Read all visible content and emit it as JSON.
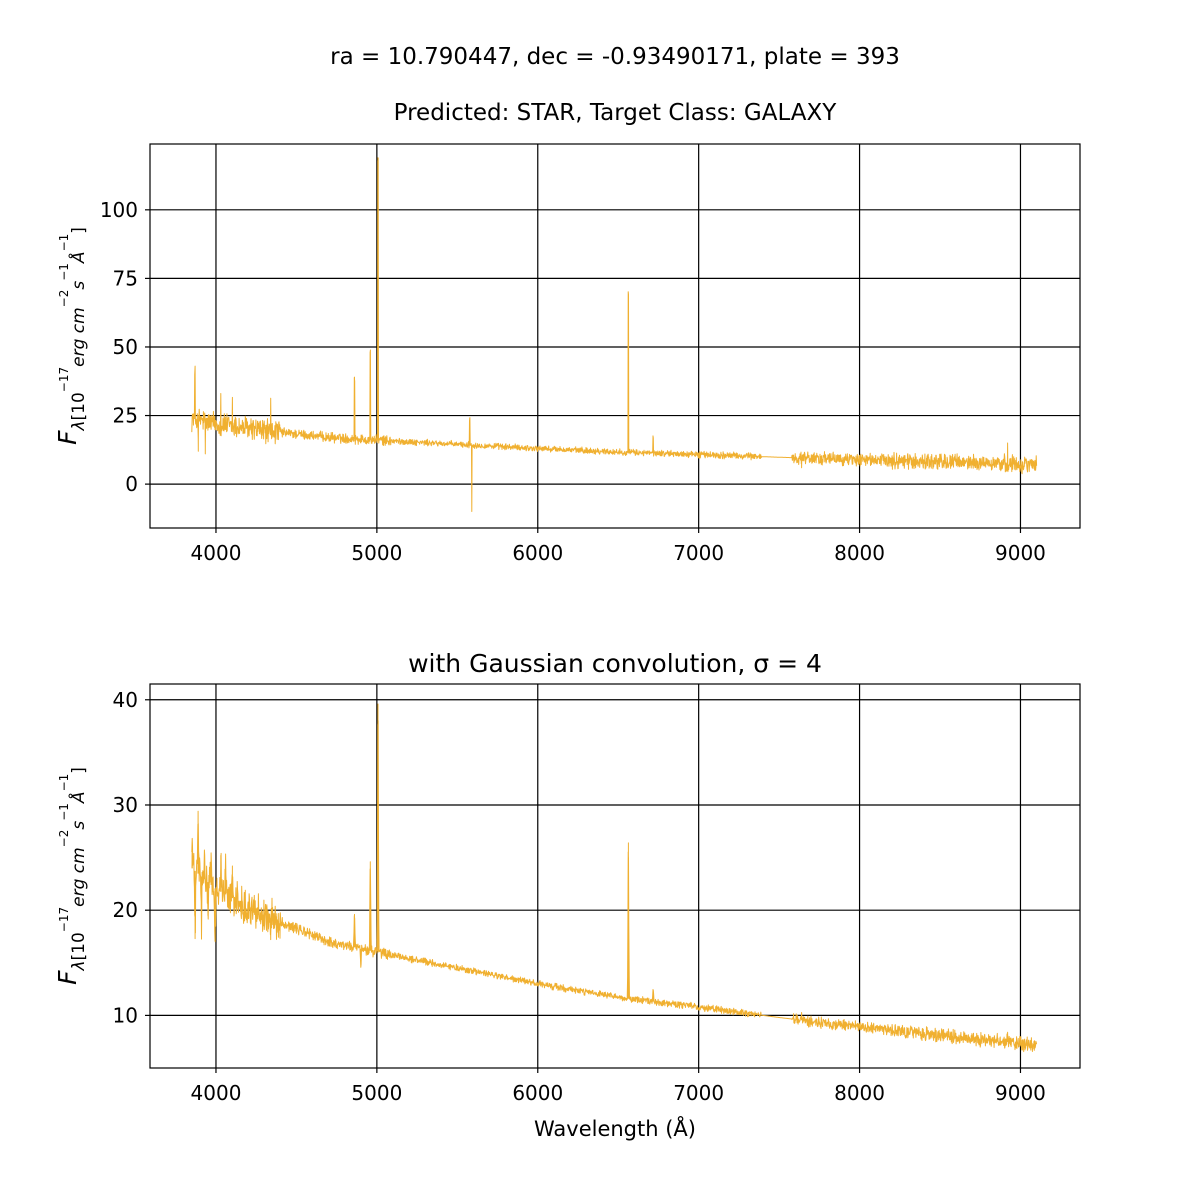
{
  "figure": {
    "title_line1": "ra = 10.790447, dec = -0.93490171, plate = 393",
    "title_line2": "Predicted: STAR, Target Class: GALAXY",
    "line_color": "#f0b030",
    "grid_color": "#000000",
    "background": "#ffffff"
  },
  "chart_data": [
    {
      "type": "line",
      "title": "",
      "xlabel": "",
      "ylabel": "F_λ[10^{-17} erg cm^{-2} s^{-1} Å^{-1}]",
      "xlim": [
        3590,
        9370
      ],
      "ylim": [
        -16,
        124
      ],
      "xticks": [
        4000,
        5000,
        6000,
        7000,
        8000,
        9000
      ],
      "yticks": [
        0,
        25,
        50,
        75,
        100
      ],
      "grid": true,
      "wavelength_range": [
        3850,
        9100
      ],
      "gap": [
        7390,
        7580
      ],
      "continuum": [
        [
          3850,
          24
        ],
        [
          4000,
          22
        ],
        [
          4300,
          19.5
        ],
        [
          4700,
          17
        ],
        [
          5000,
          16
        ],
        [
          5500,
          14.5
        ],
        [
          6000,
          13
        ],
        [
          6500,
          11.7
        ],
        [
          7000,
          10.8
        ],
        [
          7500,
          9.8
        ],
        [
          8000,
          8.9
        ],
        [
          8500,
          8.1
        ],
        [
          9100,
          7.2
        ]
      ],
      "noise_regions": [
        [
          3850,
          4400,
          3.5
        ],
        [
          4400,
          5100,
          1.4
        ],
        [
          5100,
          7000,
          0.9
        ],
        [
          7000,
          7580,
          1.0
        ],
        [
          7580,
          8200,
          1.8
        ],
        [
          8200,
          9100,
          2.4
        ]
      ],
      "features": [
        {
          "x": 3869,
          "y": 39
        },
        {
          "x": 3890,
          "y": 12
        },
        {
          "x": 3934,
          "y": 11
        },
        {
          "x": 4030,
          "y": 31
        },
        {
          "x": 4102,
          "y": 30
        },
        {
          "x": 4340,
          "y": 28
        },
        {
          "x": 4861,
          "y": 39
        },
        {
          "x": 4959,
          "y": 48
        },
        {
          "x": 5007,
          "y": 119
        },
        {
          "x": 5577,
          "y": 24
        },
        {
          "x": 5590,
          "y": -10
        },
        {
          "x": 6563,
          "y": 69
        },
        {
          "x": 6717,
          "y": 17
        },
        {
          "x": 7640,
          "y": 6
        },
        {
          "x": 8920,
          "y": 15
        }
      ]
    },
    {
      "type": "line",
      "title": "with Gaussian convolution, σ = 4",
      "xlabel": "Wavelength (Å)",
      "ylabel": "F_λ[10^{-17} erg cm^{-2} s^{-1} Å^{-1}]",
      "xlim": [
        3590,
        9370
      ],
      "ylim": [
        5,
        41.5
      ],
      "xticks": [
        4000,
        5000,
        6000,
        7000,
        8000,
        9000
      ],
      "yticks": [
        10,
        20,
        30,
        40
      ],
      "grid": true,
      "wavelength_range": [
        3850,
        9100
      ],
      "gap": [
        7390,
        7580
      ],
      "continuum": [
        [
          3850,
          24
        ],
        [
          4000,
          22
        ],
        [
          4300,
          19.5
        ],
        [
          4700,
          17
        ],
        [
          5000,
          16
        ],
        [
          5500,
          14.5
        ],
        [
          6000,
          13
        ],
        [
          6500,
          11.7
        ],
        [
          7000,
          10.8
        ],
        [
          7500,
          9.8
        ],
        [
          8000,
          8.9
        ],
        [
          8500,
          8.1
        ],
        [
          9100,
          7.2
        ]
      ],
      "noise_regions": [
        [
          3850,
          4400,
          1.4
        ],
        [
          4400,
          5100,
          0.4
        ],
        [
          5100,
          7000,
          0.25
        ],
        [
          7000,
          7580,
          0.25
        ],
        [
          7580,
          8200,
          0.4
        ],
        [
          8200,
          9100,
          0.55
        ]
      ],
      "features": [
        {
          "x": 3852,
          "y": 26.8
        },
        {
          "x": 3870,
          "y": 17.3
        },
        {
          "x": 3889,
          "y": 29.4
        },
        {
          "x": 3910,
          "y": 19.0
        },
        {
          "x": 3930,
          "y": 24.5
        },
        {
          "x": 3950,
          "y": 19.5
        },
        {
          "x": 3970,
          "y": 24.7
        },
        {
          "x": 3995,
          "y": 17.0
        },
        {
          "x": 4030,
          "y": 25.2
        },
        {
          "x": 4060,
          "y": 25.0
        },
        {
          "x": 4102,
          "y": 24.2
        },
        {
          "x": 4140,
          "y": 19.8
        },
        {
          "x": 4340,
          "y": 17.2
        },
        {
          "x": 4861,
          "y": 19.6
        },
        {
          "x": 4900,
          "y": 14.6
        },
        {
          "x": 4959,
          "y": 24.6
        },
        {
          "x": 5007,
          "y": 39.6
        },
        {
          "x": 6563,
          "y": 26.4
        },
        {
          "x": 6717,
          "y": 12.4
        },
        {
          "x": 7640,
          "y": 10.1
        },
        {
          "x": 8920,
          "y": 8.4
        }
      ]
    }
  ]
}
